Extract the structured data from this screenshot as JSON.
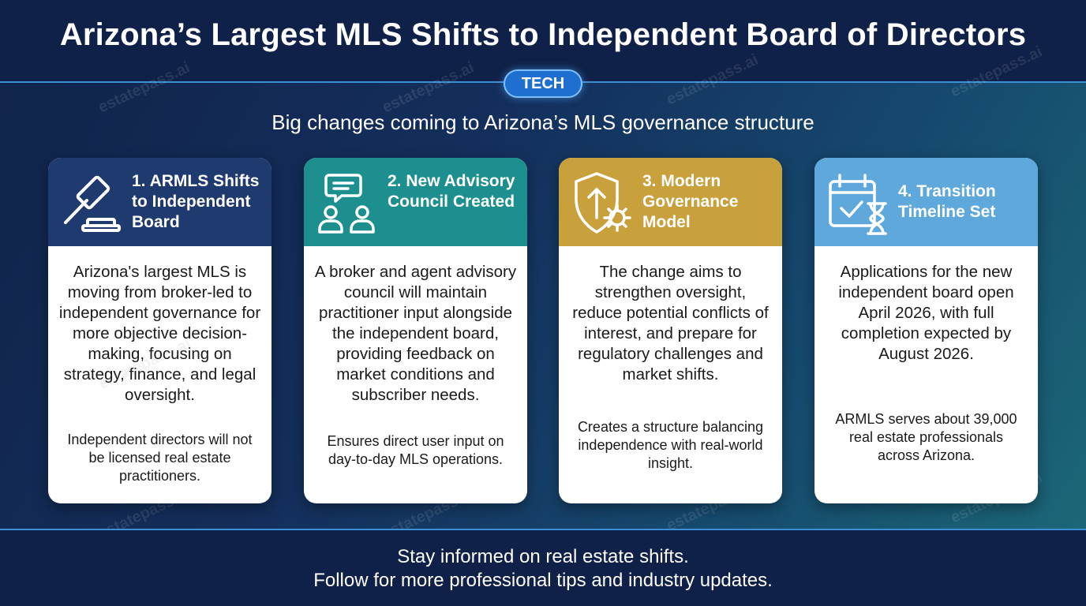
{
  "header": {
    "title": "Arizona’s Largest MLS Shifts to Independent Board of Directors",
    "tag": "TECH",
    "subtitle": "Big changes coming to Arizona’s MLS governance structure"
  },
  "watermark": "estatepass.ai",
  "cards": [
    {
      "title": "1. ARMLS Shifts to Independent Board",
      "icon": "gavel-icon",
      "color": "#1f3a6e",
      "body": "Arizona's largest MLS is moving from broker-led to independent governance for more objective decision-making, focusing on strategy, finance, and legal oversight.",
      "note": "Independent directors will not be licensed real estate practitioners."
    },
    {
      "title": "2. New Advisory Council Created",
      "icon": "council-people-icon",
      "color": "#1e8f8f",
      "body": "A broker and agent advisory council will maintain practitioner input alongside the independent board, providing feedback on market conditions and subscriber needs.",
      "note": "Ensures direct user input on day-to-day MLS operations."
    },
    {
      "title": "3. Modern Governance Model",
      "icon": "shield-gear-icon",
      "color": "#c9a13c",
      "body": "The change aims to strengthen oversight, reduce potential conflicts of interest, and prepare for regulatory challenges and market shifts.",
      "note": "Creates a structure balancing independence with real-world insight."
    },
    {
      "title": "4. Transition Timeline Set",
      "icon": "calendar-hourglass-icon",
      "color": "#5ea8dc",
      "body": "Applications for the new independent board open April 2026, with full completion expected by August 2026.",
      "note": "ARMLS serves about 39,000 real estate professionals across Arizona."
    }
  ],
  "footer": {
    "line1": "Stay informed on real estate shifts.",
    "line2": "Follow for more professional tips and industry updates."
  }
}
